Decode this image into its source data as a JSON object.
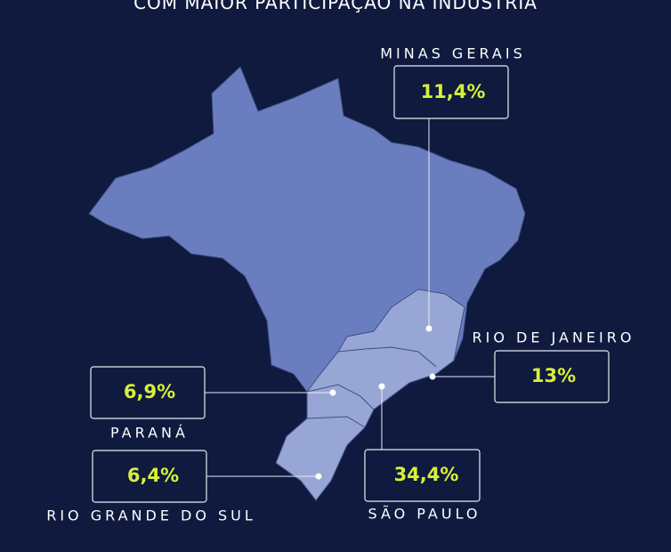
{
  "title": "COM MAIOR PARTICIPAÇÃO NA INDÚSTRIA",
  "states": [
    {
      "name": "MINAS GERAIS",
      "share": "11,4%"
    },
    {
      "name": "RIO DE JANEIRO",
      "share": "13%"
    },
    {
      "name": "PARANÁ",
      "share": "6,9%"
    },
    {
      "name": "RIO GRANDE DO SUL",
      "share": "6,4%"
    },
    {
      "name": "SÃO PAULO",
      "share": "34,4%"
    }
  ]
}
